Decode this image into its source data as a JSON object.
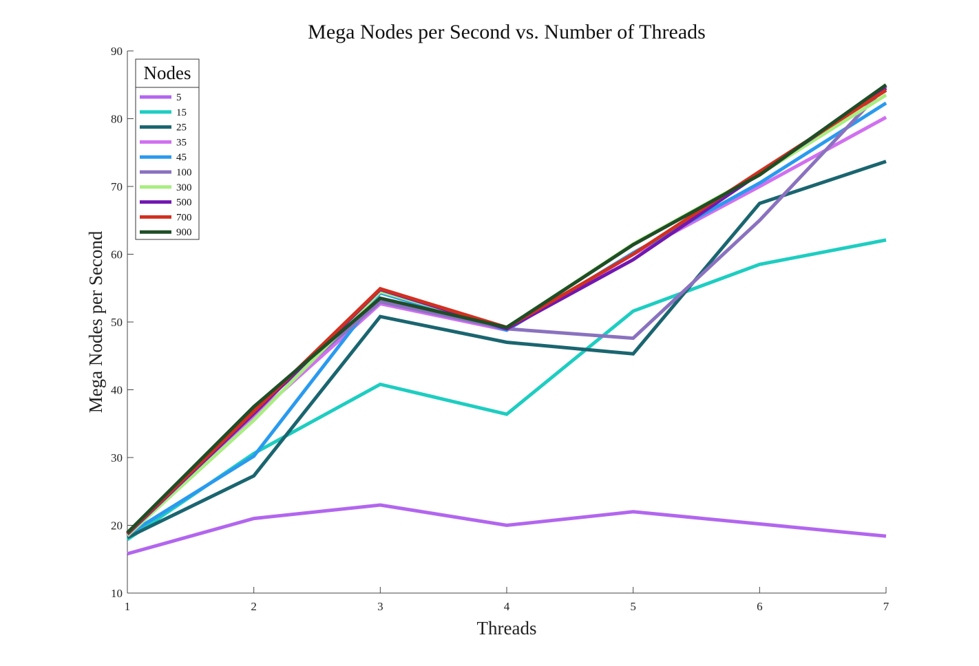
{
  "chart_data": {
    "type": "line",
    "title": "Mega Nodes per Second vs. Number of Threads",
    "xlabel": "Threads",
    "ylabel": "Mega Nodes per Second",
    "x": [
      1,
      2,
      3,
      4,
      5,
      6,
      7
    ],
    "xlim": [
      1,
      7
    ],
    "ylim": [
      10,
      90
    ],
    "xticks": [
      "1",
      "2",
      "3",
      "4",
      "5",
      "6",
      "7"
    ],
    "yticks": [
      "10",
      "20",
      "30",
      "40",
      "50",
      "60",
      "70",
      "80",
      "90"
    ],
    "grid": false,
    "legend": {
      "title": "Nodes",
      "position": "top-left"
    },
    "series": [
      {
        "name": "5",
        "color": "#b266ee",
        "values": [
          15.8,
          21.0,
          23.0,
          20.0,
          22.0,
          20.2,
          18.4
        ]
      },
      {
        "name": "15",
        "color": "#1ecdc1",
        "values": [
          17.9,
          30.6,
          40.8,
          36.4,
          51.6,
          58.5,
          62.1
        ]
      },
      {
        "name": "25",
        "color": "#1a6570",
        "values": [
          18.2,
          27.3,
          50.8,
          47.0,
          45.3,
          67.5,
          73.7
        ]
      },
      {
        "name": "35",
        "color": "#d070f0",
        "values": [
          18.5,
          36.0,
          52.7,
          48.8,
          60.0,
          70.0,
          80.2
        ]
      },
      {
        "name": "45",
        "color": "#2a9aee",
        "values": [
          18.6,
          30.2,
          54.3,
          48.8,
          60.2,
          70.5,
          82.3
        ]
      },
      {
        "name": "100",
        "color": "#8a72bf",
        "values": [
          18.4,
          37.0,
          53.0,
          49.0,
          47.6,
          65.0,
          84.8
        ]
      },
      {
        "name": "300",
        "color": "#a8ee80",
        "values": [
          18.5,
          35.5,
          54.5,
          49.2,
          61.5,
          71.8,
          83.5
        ]
      },
      {
        "name": "500",
        "color": "#7118b0",
        "values": [
          18.7,
          36.5,
          54.8,
          49.0,
          59.2,
          71.9,
          84.5
        ]
      },
      {
        "name": "700",
        "color": "#d23020",
        "values": [
          18.8,
          36.8,
          54.9,
          49.2,
          60.0,
          72.2,
          84.2
        ]
      },
      {
        "name": "900",
        "color": "#1f4d27",
        "values": [
          18.9,
          37.5,
          53.5,
          49.2,
          61.4,
          71.7,
          85.0
        ]
      }
    ]
  }
}
